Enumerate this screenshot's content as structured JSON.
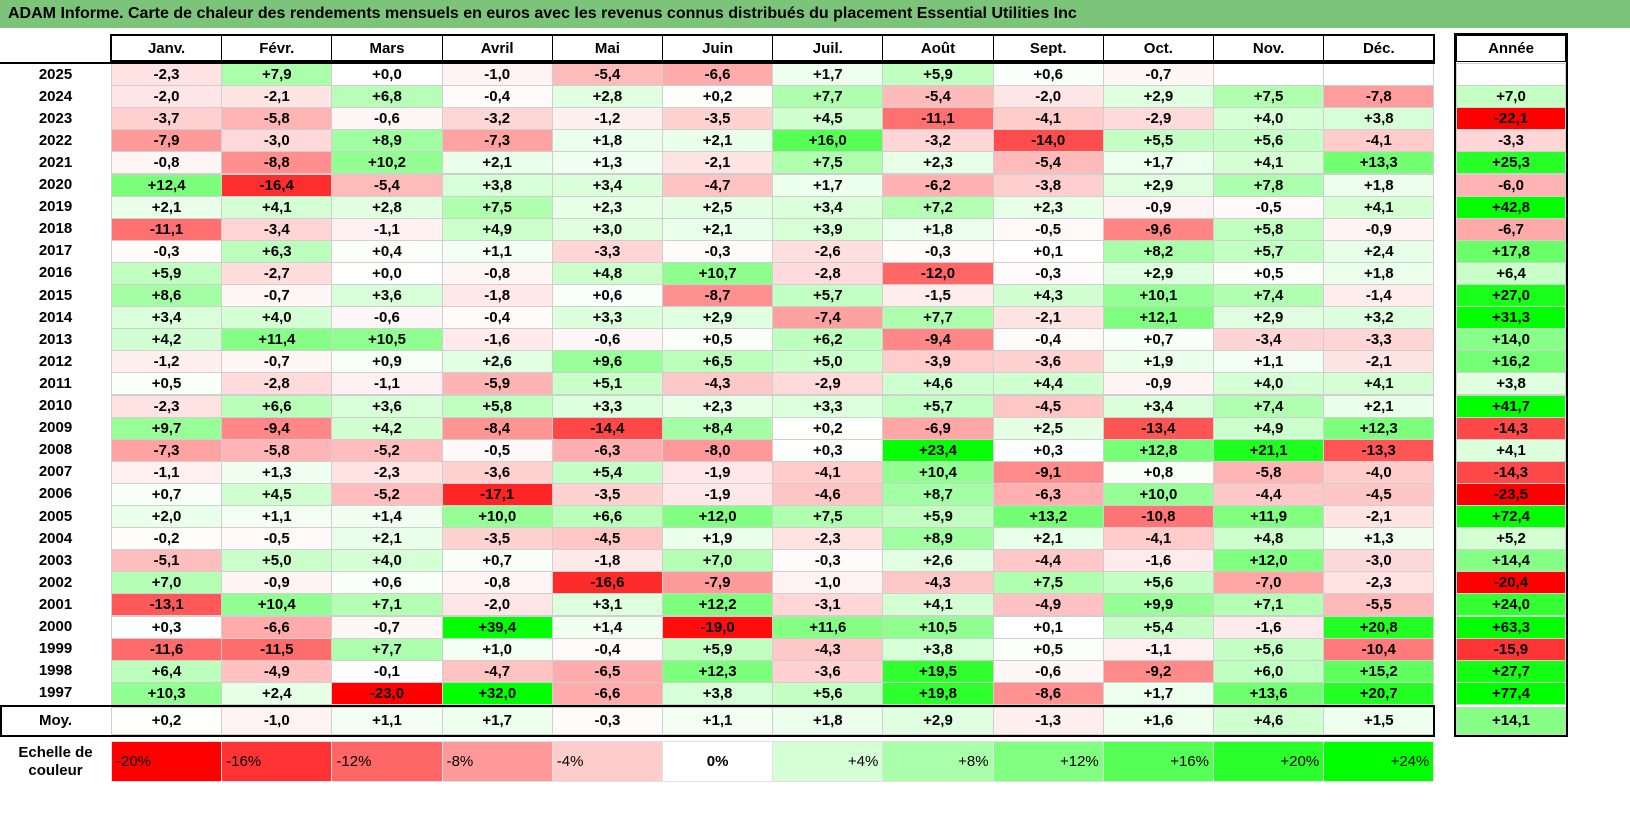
{
  "title": "ADAM Informe. Carte de chaleur des rendements mensuels en euros avec les revenus connus distribués du placement Essential Utilities Inc",
  "colors": {
    "title_bg": "#7cc47a",
    "neg_strong": "#ff0000",
    "pos_strong": "#00ff00",
    "neutral": "#ffffff"
  },
  "chart_data": {
    "type": "heatmap",
    "columns": [
      "Janv.",
      "Févr.",
      "Mars",
      "Avril",
      "Mai",
      "Juin",
      "Juil.",
      "Août",
      "Sept.",
      "Oct.",
      "Nov.",
      "Déc."
    ],
    "year_header": "Année",
    "rows": [
      {
        "year": "2025",
        "values": [
          "-2,3",
          "+7,9",
          "+0,0",
          "-1,0",
          "-5,4",
          "-6,6",
          "+1,7",
          "+5,9",
          "+0,6",
          "-0,7",
          "",
          ""
        ],
        "annual": ""
      },
      {
        "year": "2024",
        "values": [
          "-2,0",
          "-2,1",
          "+6,8",
          "-0,4",
          "+2,8",
          "+0,2",
          "+7,7",
          "-5,4",
          "-2,0",
          "+2,9",
          "+7,5",
          "-7,8"
        ],
        "annual": "+7,0"
      },
      {
        "year": "2023",
        "values": [
          "-3,7",
          "-5,8",
          "-0,6",
          "-3,2",
          "-1,2",
          "-3,5",
          "+4,5",
          "-11,1",
          "-4,1",
          "-2,9",
          "+4,0",
          "+3,8"
        ],
        "annual": "-22,1"
      },
      {
        "year": "2022",
        "values": [
          "-7,9",
          "-3,0",
          "+8,9",
          "-7,3",
          "+1,8",
          "+2,1",
          "+16,0",
          "-3,2",
          "-14,0",
          "+5,5",
          "+5,6",
          "-4,1"
        ],
        "annual": "-3,3"
      },
      {
        "year": "2021",
        "values": [
          "-0,8",
          "-8,8",
          "+10,2",
          "+2,1",
          "+1,3",
          "-2,1",
          "+7,5",
          "+2,3",
          "-5,4",
          "+1,7",
          "+4,1",
          "+13,3"
        ],
        "annual": "+25,3"
      },
      {
        "year": "2020",
        "values": [
          "+12,4",
          "-16,4",
          "-5,4",
          "+3,8",
          "+3,4",
          "-4,7",
          "+1,7",
          "-6,2",
          "-3,8",
          "+2,9",
          "+7,8",
          "+1,8"
        ],
        "annual": "-6,0"
      },
      {
        "year": "2019",
        "values": [
          "+2,1",
          "+4,1",
          "+2,8",
          "+7,5",
          "+2,3",
          "+2,5",
          "+3,4",
          "+7,2",
          "+2,3",
          "-0,9",
          "-0,5",
          "+4,1"
        ],
        "annual": "+42,8"
      },
      {
        "year": "2018",
        "values": [
          "-11,1",
          "-3,4",
          "-1,1",
          "+4,9",
          "+3,0",
          "+2,1",
          "+3,9",
          "+1,8",
          "-0,5",
          "-9,6",
          "+5,8",
          "-0,9"
        ],
        "annual": "-6,7"
      },
      {
        "year": "2017",
        "values": [
          "-0,3",
          "+6,3",
          "+0,4",
          "+1,1",
          "-3,3",
          "-0,3",
          "-2,6",
          "-0,3",
          "+0,1",
          "+8,2",
          "+5,7",
          "+2,4"
        ],
        "annual": "+17,8"
      },
      {
        "year": "2016",
        "values": [
          "+5,9",
          "-2,7",
          "+0,0",
          "-0,8",
          "+4,8",
          "+10,7",
          "-2,8",
          "-12,0",
          "-0,3",
          "+2,9",
          "+0,5",
          "+1,8"
        ],
        "annual": "+6,4"
      },
      {
        "year": "2015",
        "values": [
          "+8,6",
          "-0,7",
          "+3,6",
          "-1,8",
          "+0,6",
          "-8,7",
          "+5,7",
          "-1,5",
          "+4,3",
          "+10,1",
          "+7,4",
          "-1,4"
        ],
        "annual": "+27,0"
      },
      {
        "year": "2014",
        "values": [
          "+3,4",
          "+4,0",
          "-0,6",
          "-0,4",
          "+3,3",
          "+2,9",
          "-7,4",
          "+7,7",
          "-2,1",
          "+12,1",
          "+2,9",
          "+3,2"
        ],
        "annual": "+31,3"
      },
      {
        "year": "2013",
        "values": [
          "+4,2",
          "+11,4",
          "+10,5",
          "-1,6",
          "-0,6",
          "+0,5",
          "+6,2",
          "-9,4",
          "-0,4",
          "+0,7",
          "-3,4",
          "-3,3"
        ],
        "annual": "+14,0"
      },
      {
        "year": "2012",
        "values": [
          "-1,2",
          "-0,7",
          "+0,9",
          "+2,6",
          "+9,6",
          "+6,5",
          "+5,0",
          "-3,9",
          "-3,6",
          "+1,9",
          "+1,1",
          "-2,1"
        ],
        "annual": "+16,2"
      },
      {
        "year": "2011",
        "values": [
          "+0,5",
          "-2,8",
          "-1,1",
          "-5,9",
          "+5,1",
          "-4,3",
          "-2,9",
          "+4,6",
          "+4,4",
          "-0,9",
          "+4,0",
          "+4,1"
        ],
        "annual": "+3,8"
      },
      {
        "year": "2010",
        "values": [
          "-2,3",
          "+6,6",
          "+3,6",
          "+5,8",
          "+3,3",
          "+2,3",
          "+3,3",
          "+5,7",
          "-4,5",
          "+3,4",
          "+7,4",
          "+2,1"
        ],
        "annual": "+41,7"
      },
      {
        "year": "2009",
        "values": [
          "+9,7",
          "-9,4",
          "+4,2",
          "-8,4",
          "-14,4",
          "+8,4",
          "+0,2",
          "-6,9",
          "+2,5",
          "-13,4",
          "+4,9",
          "+12,3"
        ],
        "annual": "-14,3"
      },
      {
        "year": "2008",
        "values": [
          "-7,3",
          "-5,8",
          "-5,2",
          "-0,5",
          "-6,3",
          "-8,0",
          "+0,3",
          "+23,4",
          "+0,3",
          "+12,8",
          "+21,1",
          "-13,3"
        ],
        "annual": "+4,1"
      },
      {
        "year": "2007",
        "values": [
          "-1,1",
          "+1,3",
          "-2,3",
          "-3,6",
          "+5,4",
          "-1,9",
          "-4,1",
          "+10,4",
          "-9,1",
          "+0,8",
          "-5,8",
          "-4,0"
        ],
        "annual": "-14,3"
      },
      {
        "year": "2006",
        "values": [
          "+0,7",
          "+4,5",
          "-5,2",
          "-17,1",
          "-3,5",
          "-1,9",
          "-4,6",
          "+8,7",
          "-6,3",
          "+10,0",
          "-4,4",
          "-4,5"
        ],
        "annual": "-23,5"
      },
      {
        "year": "2005",
        "values": [
          "+2,0",
          "+1,1",
          "+1,4",
          "+10,0",
          "+6,6",
          "+12,0",
          "+7,5",
          "+5,9",
          "+13,2",
          "-10,8",
          "+11,9",
          "-2,1"
        ],
        "annual": "+72,4"
      },
      {
        "year": "2004",
        "values": [
          "-0,2",
          "-0,5",
          "+2,1",
          "-3,5",
          "-4,5",
          "+1,9",
          "-2,3",
          "+8,9",
          "+2,1",
          "-4,1",
          "+4,8",
          "+1,3"
        ],
        "annual": "+5,2"
      },
      {
        "year": "2003",
        "values": [
          "-5,1",
          "+5,0",
          "+4,0",
          "+0,7",
          "-1,8",
          "+7,0",
          "-0,3",
          "+2,6",
          "-4,4",
          "-1,6",
          "+12,0",
          "-3,0"
        ],
        "annual": "+14,4"
      },
      {
        "year": "2002",
        "values": [
          "+7,0",
          "-0,9",
          "+0,6",
          "-0,8",
          "-16,6",
          "-7,9",
          "-1,0",
          "-4,3",
          "+7,5",
          "+5,6",
          "-7,0",
          "-2,3"
        ],
        "annual": "-20,4"
      },
      {
        "year": "2001",
        "values": [
          "-13,1",
          "+10,4",
          "+7,1",
          "-2,0",
          "+3,1",
          "+12,2",
          "-3,1",
          "+4,1",
          "-4,9",
          "+9,9",
          "+7,1",
          "-5,5"
        ],
        "annual": "+24,0"
      },
      {
        "year": "2000",
        "values": [
          "+0,3",
          "-6,6",
          "-0,7",
          "+39,4",
          "+1,4",
          "-19,0",
          "+11,6",
          "+10,5",
          "+0,1",
          "+5,4",
          "-1,6",
          "+20,8"
        ],
        "annual": "+63,3"
      },
      {
        "year": "1999",
        "values": [
          "-11,6",
          "-11,5",
          "+7,7",
          "+1,0",
          "-0,4",
          "+5,9",
          "-4,3",
          "+3,8",
          "+0,5",
          "-1,1",
          "+5,6",
          "-10,4"
        ],
        "annual": "-15,9"
      },
      {
        "year": "1998",
        "values": [
          "+6,4",
          "-4,9",
          "-0,1",
          "-4,7",
          "-6,5",
          "+12,3",
          "-3,6",
          "+19,5",
          "-0,6",
          "-9,2",
          "+6,0",
          "+15,2"
        ],
        "annual": "+27,7"
      },
      {
        "year": "1997",
        "values": [
          "+10,3",
          "+2,4",
          "-23,0",
          "+32,0",
          "-6,6",
          "+3,8",
          "+5,6",
          "+19,8",
          "-8,6",
          "+1,7",
          "+13,6",
          "+20,7"
        ],
        "annual": "+77,4"
      }
    ],
    "average": {
      "label": "Moy.",
      "values": [
        "+0,2",
        "-1,0",
        "+1,1",
        "+1,7",
        "-0,3",
        "+1,1",
        "+1,8",
        "+2,9",
        "-1,3",
        "+1,6",
        "+4,6",
        "+1,5"
      ],
      "annual": "+14,1"
    },
    "scale": {
      "label": "Echelle de couleur",
      "steps": [
        "-20%",
        "-16%",
        "-12%",
        "-8%",
        "-4%",
        "0%",
        "+4%",
        "+8%",
        "+12%",
        "+16%",
        "+20%",
        "+24%"
      ]
    }
  }
}
